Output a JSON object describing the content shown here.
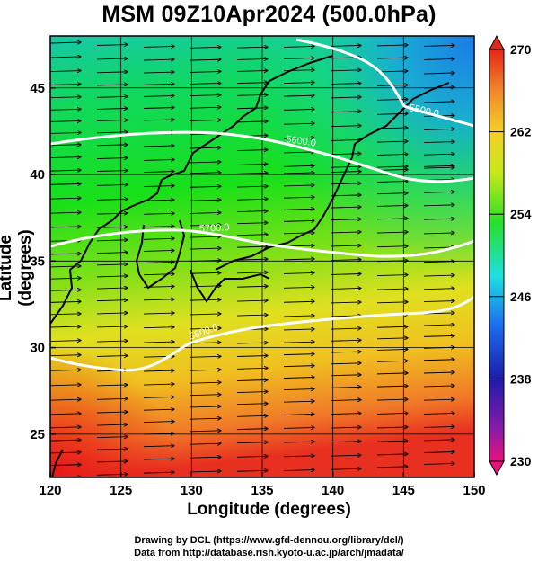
{
  "title": "MSM 09Z10Apr2024 (500.0hPa)",
  "axes": {
    "xlabel": "Longitude (degrees)",
    "ylabel": "Latitude  (degrees)",
    "xlim": [
      120,
      150
    ],
    "ylim": [
      22.5,
      48
    ],
    "xticks": [
      "120",
      "125",
      "130",
      "135",
      "140",
      "145",
      "150"
    ],
    "yticks": [
      "25",
      "30",
      "35",
      "40",
      "45"
    ]
  },
  "colorbar": {
    "min": 230,
    "max": 270,
    "ticks": [
      "270",
      "262",
      "254",
      "246",
      "238",
      "230"
    ],
    "colors": [
      "#e8137a",
      "#1c1caa",
      "#1a86f0",
      "#1de0e0",
      "#28e028",
      "#c6e818",
      "#f5cf28",
      "#f0882a",
      "#e62618"
    ]
  },
  "contours": {
    "labels": [
      "5500.0",
      "5600.0",
      "5700.0",
      "5800.0"
    ]
  },
  "credits": {
    "line1": "Drawing by DCL (https://www.gfd-dennou.org/library/dcl/)",
    "line2": "Data from http://database.rish.kyoto-u.ac.jp/arch/jmadata/"
  }
}
